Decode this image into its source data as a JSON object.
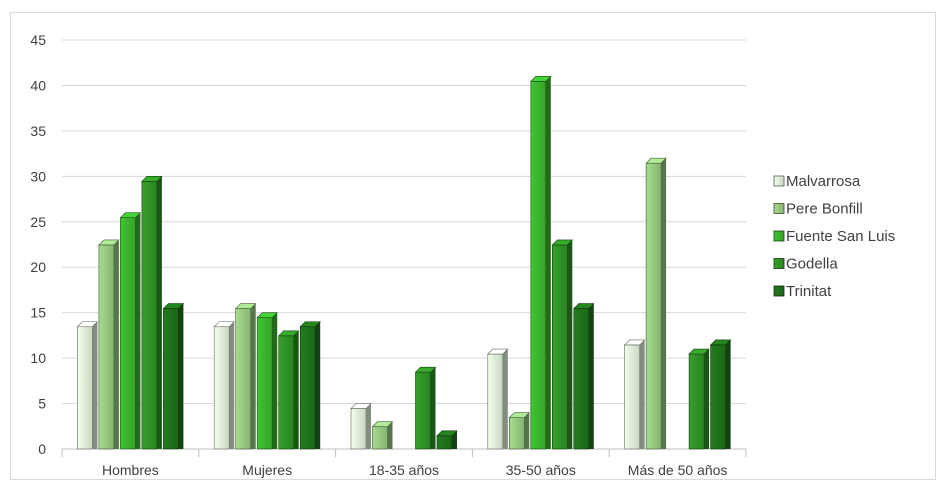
{
  "chart_data": {
    "type": "bar",
    "categories": [
      "Hombres",
      "Mujeres",
      "18-35 años",
      "35-50 años",
      "Más de 50 años"
    ],
    "series": [
      {
        "name": "Malvarrosa",
        "values": [
          14,
          14,
          5,
          11,
          12
        ],
        "color": "#d9ead3"
      },
      {
        "name": "Pere Bonfill",
        "values": [
          23,
          16,
          3,
          4,
          32
        ],
        "color": "#93c47d"
      },
      {
        "name": "Fuente San Luis",
        "values": [
          26,
          15,
          0,
          41,
          0
        ],
        "color": "#38b02c"
      },
      {
        "name": "Godella",
        "values": [
          30,
          13,
          9,
          23,
          11
        ],
        "color": "#2e8f24"
      },
      {
        "name": "Trinitat",
        "values": [
          16,
          14,
          2,
          16,
          12
        ],
        "color": "#1f6f1a"
      }
    ],
    "ylim": [
      0,
      45
    ],
    "yticks": [
      0,
      5,
      10,
      15,
      20,
      25,
      30,
      35,
      40,
      45
    ],
    "grid": true,
    "legend_position": "right",
    "title": "",
    "xlabel": "",
    "ylabel": ""
  }
}
